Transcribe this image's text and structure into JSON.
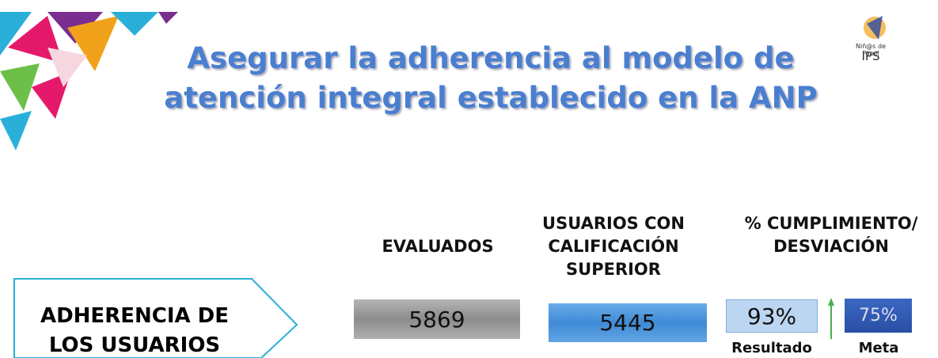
{
  "header": {
    "title_lines": [
      "Asegurar la adherencia al modelo de",
      "atención integral establecido en la ANP"
    ],
    "logo": {
      "tagline": "Niñ@s de Papel",
      "name": "IPS"
    }
  },
  "table": {
    "columns": [
      [
        "EVALUADOS"
      ],
      [
        "USUARIOS CON",
        "CALIFICACIÓN",
        "SUPERIOR"
      ],
      [
        "% CUMPLIMIENTO/",
        "DESVIACIÓN"
      ]
    ],
    "row": {
      "label_lines": [
        "ADHERENCIA DE",
        "LOS USUARIOS"
      ],
      "evaluados": 5869,
      "calificacion_superior": 5445,
      "resultado": "93%",
      "resultado_label": "Resultado",
      "meta": "75%",
      "meta_label": "Meta"
    }
  }
}
